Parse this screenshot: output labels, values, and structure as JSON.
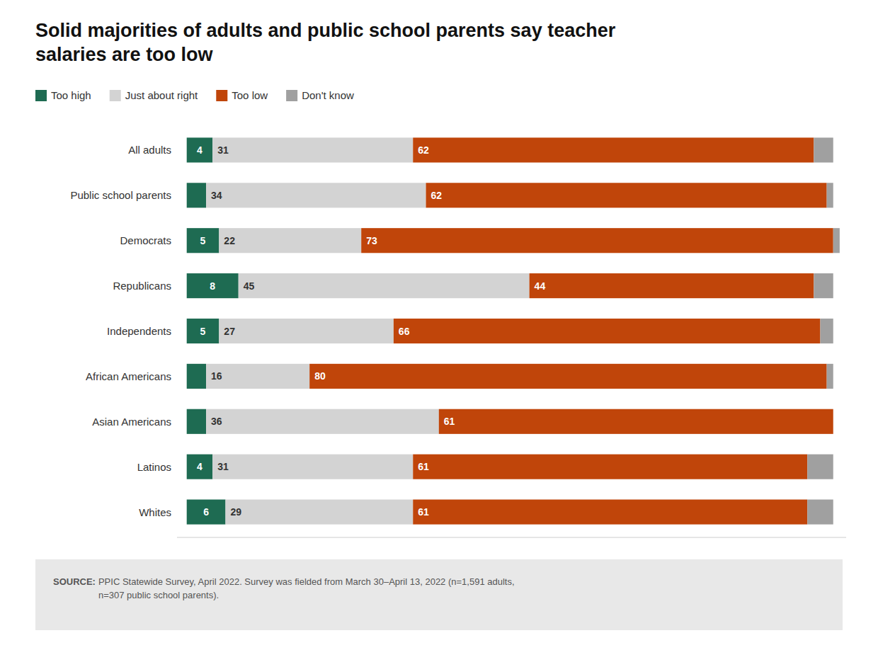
{
  "chart_data": {
    "type": "bar",
    "orientation": "horizontal",
    "stacked": true,
    "title": "Solid majorities of adults and public school parents say teacher\nsalaries are too low",
    "categories": [
      "All adults",
      "Public school parents",
      "Democrats",
      "Republicans",
      "Independents",
      "African Americans",
      "Asian Americans",
      "Latinos",
      "Whites"
    ],
    "series": [
      {
        "name": "Too high",
        "color": "#1e6b52",
        "values": [
          4,
          3,
          5,
          8,
          5,
          3,
          3,
          4,
          6
        ],
        "value_labels": [
          "4",
          null,
          "5",
          "8",
          "5",
          null,
          null,
          "4",
          "6"
        ]
      },
      {
        "name": "Just about right",
        "color": "#d3d3d3",
        "values": [
          31,
          34,
          22,
          45,
          27,
          16,
          36,
          31,
          29
        ],
        "value_labels": [
          "31",
          "34",
          "22",
          "45",
          "27",
          "16",
          "36",
          "31",
          "29"
        ]
      },
      {
        "name": "Too low",
        "color": "#c0450a",
        "values": [
          62,
          62,
          73,
          44,
          66,
          80,
          61,
          61,
          61
        ],
        "value_labels": [
          "62",
          "62",
          "73",
          "44",
          "66",
          "80",
          "61",
          "61",
          "61"
        ]
      },
      {
        "name": "Don't know",
        "color": "#a0a0a0",
        "values": [
          3,
          1,
          1,
          3,
          2,
          1,
          0,
          4,
          4
        ],
        "value_labels": [
          null,
          null,
          null,
          null,
          null,
          null,
          null,
          null,
          null
        ]
      }
    ],
    "xlim": [
      -1.5,
      102
    ],
    "data_labels": true,
    "tick_labels": "y",
    "grid": false,
    "legend": "upper left",
    "annotations": [
      "SOURCE:",
      " PPIC Statewide Survey, April 2022. Survey was fielded from March 30–April 13, 2022 (n=1,591 adults,\nn=307 public school parents)."
    ]
  }
}
